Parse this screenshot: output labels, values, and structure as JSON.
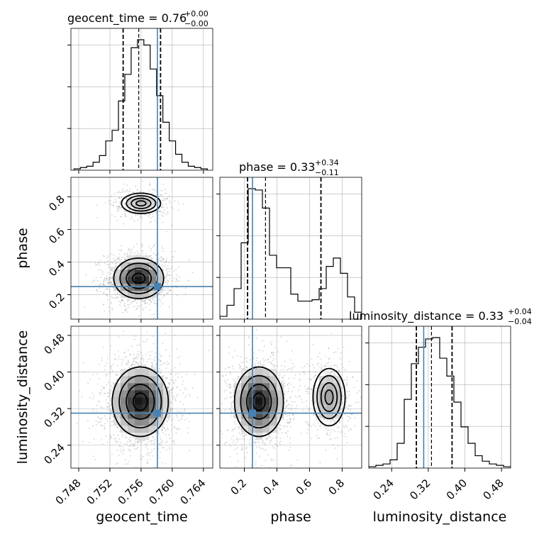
{
  "chart_data": {
    "type": "corner",
    "parameters": [
      "geocent_time",
      "phase",
      "luminosity_distance"
    ],
    "truths": {
      "geocent_time": 0.7581,
      "phase": 0.25,
      "luminosity_distance": 0.31
    },
    "colors": {
      "truth": "#4682b4",
      "hist": "#000000",
      "grid": "#b0b0b0"
    },
    "titles": [
      {
        "param": "geocent_time",
        "text": "geocent_time = 0.76",
        "plus": "+0.00",
        "minus": "−0.00"
      },
      {
        "param": "phase",
        "text": "phase = 0.33",
        "plus": "+0.34",
        "minus": "−0.11"
      },
      {
        "param": "luminosity_distance",
        "text": "luminosity_distance = 0.33",
        "plus": "+0.04",
        "minus": "−0.04"
      }
    ],
    "axes": {
      "geocent_time": {
        "label": "geocent_time",
        "range": [
          0.747,
          0.7652
        ],
        "ticks": [
          "0.748",
          "0.752",
          "0.756",
          "0.760",
          "0.764"
        ],
        "tick_values": [
          0.748,
          0.752,
          0.756,
          0.76,
          0.764
        ]
      },
      "phase": {
        "label": "phase",
        "range": [
          0.05,
          0.92
        ],
        "ticks": [
          "0.2",
          "0.4",
          "0.6",
          "0.8"
        ],
        "tick_values": [
          0.2,
          0.4,
          0.6,
          0.8
        ]
      },
      "luminosity_distance": {
        "label": "luminosity_distance",
        "range": [
          0.19,
          0.5
        ],
        "ticks": [
          "0.24",
          "0.32",
          "0.40",
          "0.48"
        ],
        "tick_values": [
          0.24,
          0.32,
          0.4,
          0.48
        ]
      }
    },
    "quantiles": {
      "geocent_time": [
        0.7537,
        0.7557,
        0.7585
      ],
      "phase": [
        0.22,
        0.33,
        0.67
      ],
      "luminosity_distance": [
        0.294,
        0.327,
        0.372
      ]
    },
    "histograms": {
      "geocent_time": {
        "edges_range": [
          0.7474,
          0.7645
        ],
        "counts": [
          0.01,
          0.02,
          0.03,
          0.06,
          0.11,
          0.22,
          0.3,
          0.52,
          0.72,
          0.92,
          0.98,
          0.94,
          0.76,
          0.56,
          0.36,
          0.22,
          0.12,
          0.06,
          0.03,
          0.02,
          0.01
        ]
      },
      "phase": {
        "edges_range": [
          0.05,
          0.92
        ],
        "counts": [
          0.02,
          0.1,
          0.22,
          0.55,
          0.94,
          0.93,
          0.8,
          0.46,
          0.37,
          0.37,
          0.18,
          0.13,
          0.13,
          0.14,
          0.22,
          0.38,
          0.44,
          0.33,
          0.16,
          0.05
        ]
      },
      "luminosity_distance": {
        "edges_range": [
          0.19,
          0.5
        ],
        "counts": [
          0.01,
          0.02,
          0.03,
          0.06,
          0.18,
          0.5,
          0.76,
          0.88,
          0.94,
          0.95,
          0.8,
          0.67,
          0.48,
          0.3,
          0.18,
          0.09,
          0.05,
          0.03,
          0.02,
          0.01
        ]
      }
    },
    "contours_2d": [
      {
        "x": "geocent_time",
        "y": "phase",
        "modes": [
          {
            "center": [
              0.7557,
              0.3
            ],
            "sigma": [
              0.0016,
              0.062
            ],
            "weight": 1.0
          },
          {
            "center": [
              0.756,
              0.76
            ],
            "sigma": [
              0.0014,
              0.035
            ],
            "weight": 0.3
          }
        ]
      },
      {
        "x": "geocent_time",
        "y": "luminosity_distance",
        "modes": [
          {
            "center": [
              0.7559,
              0.335
            ],
            "sigma": [
              0.0018,
              0.038
            ],
            "weight": 1.0
          }
        ]
      },
      {
        "x": "phase",
        "y": "luminosity_distance",
        "modes": [
          {
            "center": [
              0.29,
              0.335
            ],
            "sigma": [
              0.075,
              0.038
            ],
            "weight": 1.0
          },
          {
            "center": [
              0.72,
              0.345
            ],
            "sigma": [
              0.055,
              0.035
            ],
            "weight": 0.4
          }
        ]
      }
    ]
  }
}
